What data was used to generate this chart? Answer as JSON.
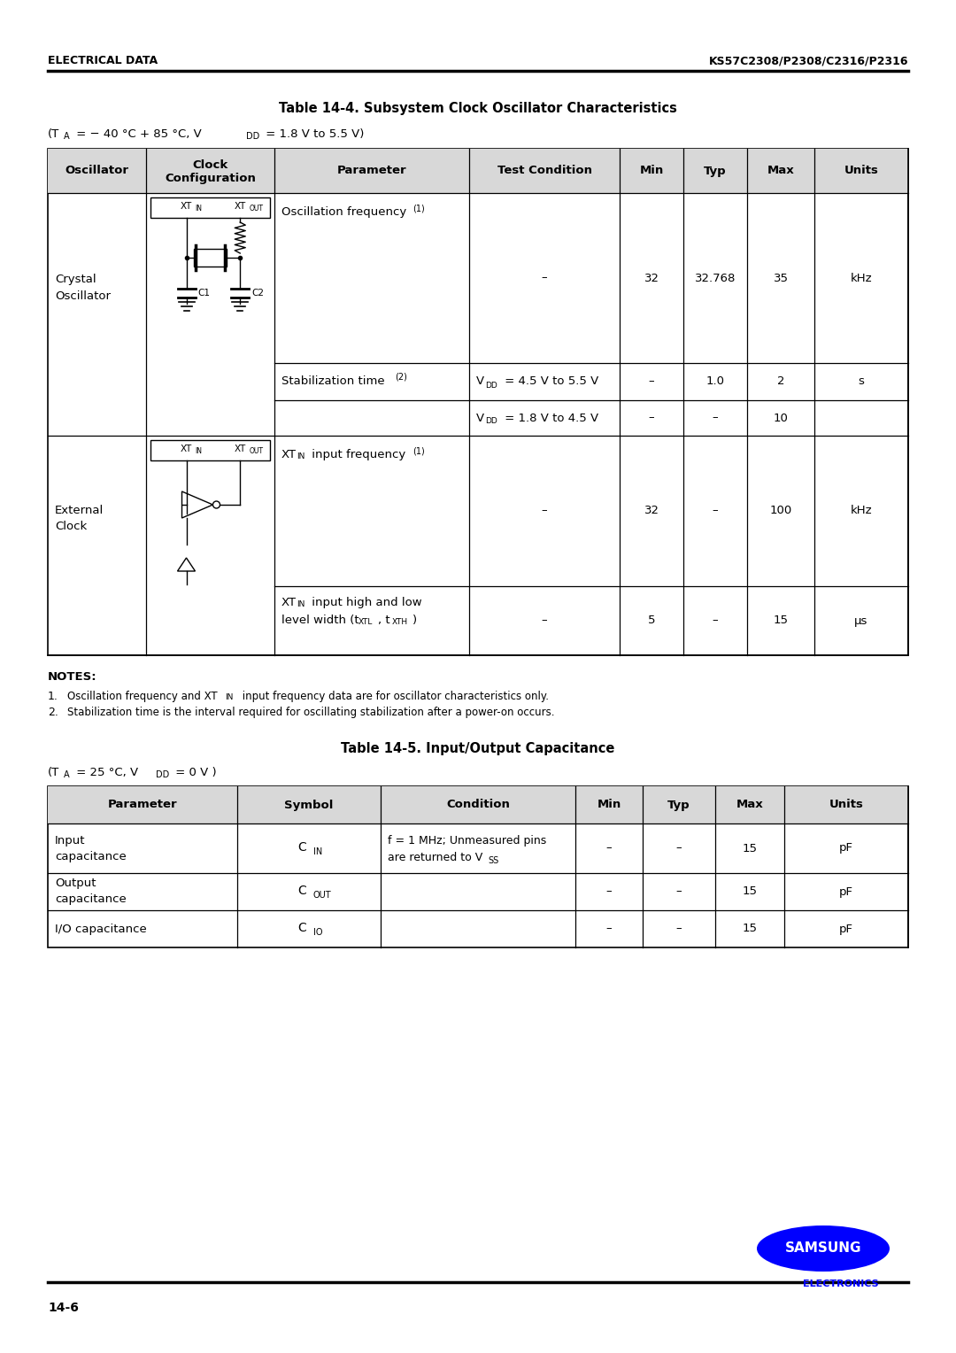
{
  "page_title_left": "ELECTRICAL DATA",
  "page_title_right": "KS57C2308/P2308/C2316/P2316",
  "page_number": "14-6",
  "table1_title": "Table 14-4. Subsystem Clock Oscillator Characteristics",
  "table1_headers": [
    "Oscillator",
    "Clock\nConfiguration",
    "Parameter",
    "Test Condition",
    "Min",
    "Typ",
    "Max",
    "Units"
  ],
  "table2_title": "Table 14-5. Input/Output Capacitance",
  "table2_headers": [
    "Parameter",
    "Symbol",
    "Condition",
    "Min",
    "Typ",
    "Max",
    "Units"
  ],
  "bg_color": "#ffffff",
  "samsung_blue": "#0000ff",
  "header_gray": "#d8d8d8"
}
